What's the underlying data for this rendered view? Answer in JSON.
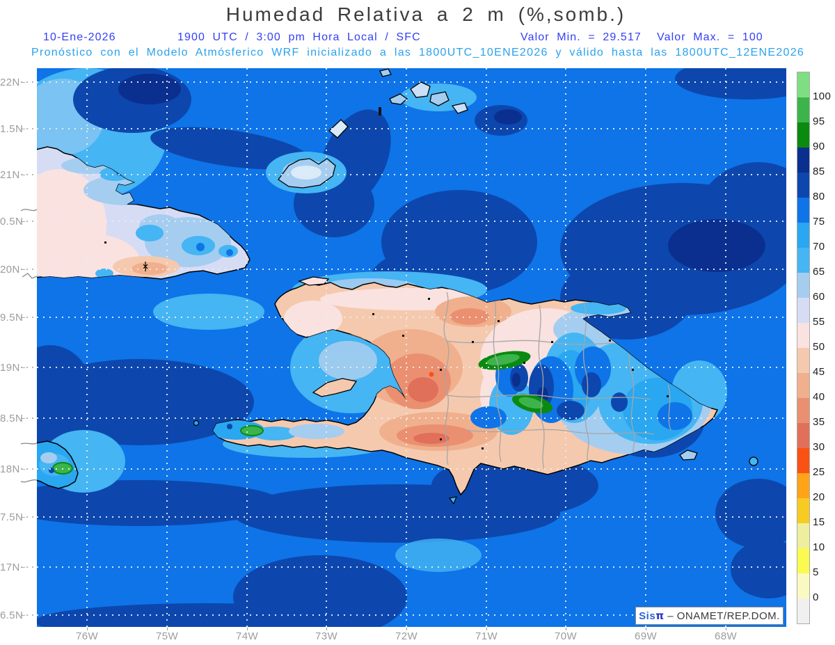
{
  "title": "Humedad Relativa a 2 m (%,somb.)",
  "header": {
    "date": "10-Ene-2026",
    "time_line": "1900 UTC / 3:00 pm Hora Local / SFC",
    "min_label": "Valor Min. = 29.517",
    "max_label": "Valor Max. = 100",
    "model_line": "Pronóstico con el Modelo Atmósferico WRF inicializado a las 1800UTC_10ENE2026 y válido hasta las 1800UTC_12ENE2026"
  },
  "map": {
    "variable": "Humedad Relativa a 2 m",
    "units": "%",
    "shading": "somb.",
    "level": "SFC",
    "valor_min": 29.517,
    "valor_max": 100,
    "region": "Hispaniola / Cuba / Jamaica / Caribbean"
  },
  "axes": {
    "lat_labels": [
      "22N",
      "1.5N",
      "21N",
      "0.5N",
      "20N",
      "9.5N",
      "19N",
      "8.5N",
      "18N",
      "7.5N",
      "17N",
      "6.5N"
    ],
    "lon_labels": [
      "76W",
      "75W",
      "74W",
      "73W",
      "72W",
      "71W",
      "70W",
      "69W",
      "68W"
    ]
  },
  "colorbar": {
    "tick_labels": [
      "100",
      "95",
      "90",
      "85",
      "80",
      "75",
      "70",
      "65",
      "60",
      "55",
      "50",
      "45",
      "40",
      "35",
      "30",
      "25",
      "20",
      "15",
      "10",
      "5",
      "0"
    ],
    "segments": [
      "#7FDE82",
      "#3CB44B",
      "#0B8A10",
      "#0A2F8F",
      "#0D47AD",
      "#0E74E8",
      "#29A7F0",
      "#45B5F3",
      "#A5CDF0",
      "#D7DCF5",
      "#FAE2E0",
      "#F5C9AE",
      "#F0B08D",
      "#EA9071",
      "#E0705A",
      "#FA5214",
      "#FFA319",
      "#F7CB22",
      "#EDEF9E",
      "#FAFA50",
      "#FAFAC0",
      "#F0F0F0"
    ]
  },
  "branding": {
    "logo_prefix": "Sis",
    "logo_pi": "π",
    "separator": "–",
    "credit": "ONAMET/REP.DOM."
  },
  "palette": {
    "ocean": "#0E74E8",
    "ocean_dark": "#0D47AD",
    "ocean_darkest": "#0A2F8F",
    "sky_blue": "#29A7F0",
    "light_cyan": "#45B5F3",
    "pale_blue": "#A5CDF0",
    "pale_lavender": "#D7DCF5",
    "pale_pink": "#FAE2E0",
    "peach_light": "#F5C9AE",
    "peach": "#F0B08D",
    "salmon": "#EA9071",
    "salmon_dark": "#E0705A",
    "green_dark": "#0B8A10",
    "green": "#3CB44B",
    "title_color": "#3C3C3C",
    "info_line1_color": "#3340F5",
    "info_line2_color": "#2AA2EE",
    "axis_label_color": "#9C9C9C"
  }
}
